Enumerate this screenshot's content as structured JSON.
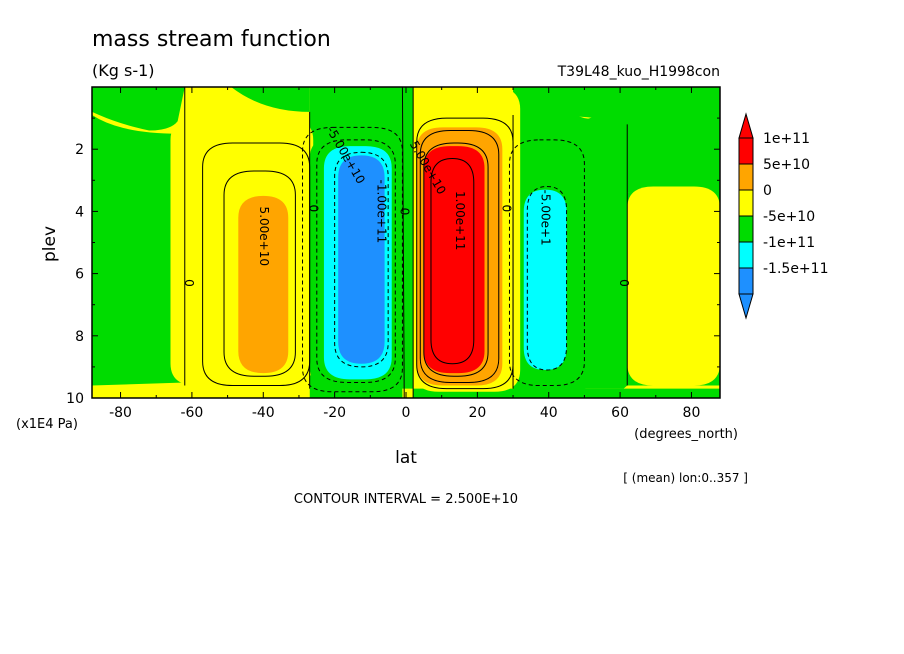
{
  "chart_data": {
    "type": "heatmap",
    "title": "mass stream function",
    "units": "(Kg s-1)",
    "experiment": "T39L48_kuo_H1998con",
    "xlabel": "lat",
    "x_units": "(degrees_north)",
    "ylabel": "plev",
    "y_units": "(x1E4 Pa)",
    "xlim": [
      -88,
      88
    ],
    "ylim": [
      10,
      0
    ],
    "y_inverted": true,
    "x_ticks": [
      "-80",
      "-60",
      "-40",
      "-20",
      "0",
      "20",
      "40",
      "60",
      "80"
    ],
    "x_tick_values": [
      -80,
      -60,
      -40,
      -20,
      0,
      20,
      40,
      60,
      80
    ],
    "y_ticks": [
      "2",
      "4",
      "6",
      "8",
      "10"
    ],
    "y_tick_values": [
      2,
      4,
      6,
      8,
      10
    ],
    "mean_note": "[ (mean) lon:0..357 ]",
    "contour_interval": "CONTOUR INTERVAL = 2.500E+10",
    "legend": {
      "placement": "right",
      "labels": [
        "1e+11",
        "5e+10",
        "0",
        "-5e+10",
        "-1e+11",
        "-1.5e+11"
      ],
      "colors": [
        "#ff0000",
        "#ffa500",
        "#ffff00",
        "#00dc00",
        "#00ffff",
        "#1e90ff"
      ],
      "top_arrow_color": "#ff0000",
      "bottom_arrow_color": "#1e90ff"
    },
    "regions": [
      {
        "name": "north-high-cell",
        "fill": "#ffff00",
        "lat_range": [
          62,
          88
        ],
        "plev_range": [
          3.2,
          9.6
        ]
      },
      {
        "name": "southern-ferrel-yellow",
        "fill": "#ffff00",
        "lat_range": [
          -66,
          -26
        ],
        "plev_range": [
          1.0,
          9.6
        ]
      },
      {
        "name": "southern-ferrel-orange",
        "fill": "#ffa500",
        "lat_range": [
          -47,
          -33
        ],
        "plev_range": [
          3.5,
          9.2
        ]
      },
      {
        "name": "southern-hadley-green",
        "fill": "#00dc00",
        "lat_range": [
          -27,
          -2
        ],
        "plev_range": [
          1.6,
          9.7
        ]
      },
      {
        "name": "southern-hadley-cyan",
        "fill": "#00ffff",
        "lat_range": [
          -23,
          -4
        ],
        "plev_range": [
          1.9,
          9.4
        ]
      },
      {
        "name": "southern-hadley-blue",
        "fill": "#1e90ff",
        "lat_range": [
          -19,
          -6
        ],
        "plev_range": [
          2.2,
          8.9
        ]
      },
      {
        "name": "northern-hadley-yellow",
        "fill": "#ffff00",
        "lat_range": [
          2,
          32
        ],
        "plev_range": [
          0.0,
          9.8
        ]
      },
      {
        "name": "northern-hadley-orange",
        "fill": "#ffa500",
        "lat_range": [
          3,
          27
        ],
        "plev_range": [
          1.3,
          9.6
        ]
      },
      {
        "name": "northern-hadley-red",
        "fill": "#ff0000",
        "lat_range": [
          5,
          22
        ],
        "plev_range": [
          1.9,
          9.2
        ]
      },
      {
        "name": "northern-ferrel-cyan",
        "fill": "#00ffff",
        "lat_range": [
          33,
          45
        ],
        "plev_range": [
          3.3,
          9.1
        ]
      }
    ],
    "contour_labels": [
      {
        "text": "5.00e+10",
        "lat": -40,
        "plev": 4.8,
        "angle": 90
      },
      {
        "text": "0",
        "lat": -61,
        "plev": 6.3,
        "angle": 90
      },
      {
        "text": "0",
        "lat": -26,
        "plev": 3.9,
        "angle": 90
      },
      {
        "text": "-5.00e+10",
        "lat": -17,
        "plev": 2.2,
        "angle": 60
      },
      {
        "text": "-1.00e+11",
        "lat": -7,
        "plev": 4.0,
        "angle": 90
      },
      {
        "text": "0",
        "lat": -0.5,
        "plev": 4.0,
        "angle": 90
      },
      {
        "text": "5.00e+10",
        "lat": 6,
        "plev": 2.6,
        "angle": 60
      },
      {
        "text": "1.00e+11",
        "lat": 15,
        "plev": 4.3,
        "angle": 90
      },
      {
        "text": "0",
        "lat": 28,
        "plev": 3.9,
        "angle": 90
      },
      {
        "text": "-5.00e+1",
        "lat": 39,
        "plev": 4.2,
        "angle": 90
      },
      {
        "text": "0",
        "lat": 61,
        "plev": 6.3,
        "angle": 90
      }
    ]
  }
}
